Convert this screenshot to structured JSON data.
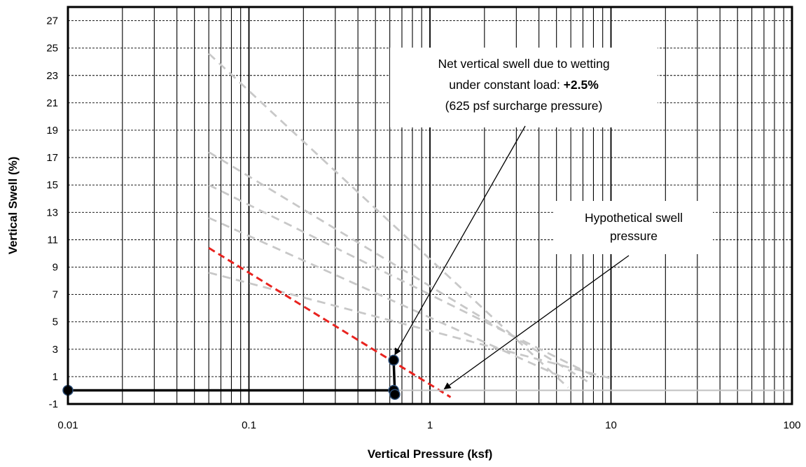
{
  "chart_data": {
    "type": "scatter",
    "xlabel": "Vertical Pressure (ksf)",
    "ylabel": "Vertical Swell (%)",
    "x_scale": "log",
    "xlim": [
      0.01,
      100
    ],
    "ylim": [
      -1,
      28
    ],
    "x_ticks": [
      "0.01",
      "0.1",
      "1",
      "10",
      "100"
    ],
    "y_ticks": [
      "-1",
      "1",
      "3",
      "5",
      "7",
      "9",
      "11",
      "13",
      "15",
      "17",
      "19",
      "21",
      "23",
      "25",
      "27"
    ],
    "grid": true,
    "legend": "none",
    "series": [
      {
        "style": "light-gray-dashed",
        "points": [
          [
            0.06,
            24.6
          ],
          [
            5.8,
            0.2
          ]
        ]
      },
      {
        "style": "light-gray-dashed",
        "points": [
          [
            0.06,
            17.4
          ],
          [
            7.5,
            0.6
          ]
        ]
      },
      {
        "style": "light-gray-dashed",
        "points": [
          [
            0.06,
            15.0
          ],
          [
            8.5,
            0.9
          ]
        ]
      },
      {
        "style": "light-gray-dashed",
        "points": [
          [
            0.06,
            12.6
          ],
          [
            5.5,
            0.9
          ]
        ]
      },
      {
        "style": "light-gray-dashed",
        "points": [
          [
            0.06,
            8.6
          ],
          [
            9.8,
            0.9
          ]
        ]
      },
      {
        "style": "red-dashed",
        "points": [
          [
            0.06,
            10.4
          ],
          [
            1.3,
            -0.5
          ]
        ]
      },
      {
        "style": "light-gray-solid",
        "points": [
          [
            0.65,
            0.0
          ],
          [
            100,
            0.0
          ]
        ]
      },
      {
        "style": "black-solid-markers",
        "points": [
          [
            0.01,
            0.0
          ],
          [
            0.63,
            0.0
          ],
          [
            0.64,
            -0.3
          ],
          [
            0.63,
            2.2
          ]
        ]
      }
    ],
    "annotations": [
      {
        "lines": [
          {
            "text": "Net vertical swell due to wetting"
          },
          {
            "text": "under constant load: ",
            "bold": "+2.5%"
          },
          {
            "text": "(625 psf surcharge pressure)"
          }
        ],
        "arrow_target": [
          0.64,
          2.6
        ]
      },
      {
        "lines": [
          {
            "text": "Hypothetical swell"
          },
          {
            "text": "pressure"
          }
        ],
        "arrow_target": [
          1.2,
          0.1
        ]
      }
    ],
    "colors": {
      "grid": "#000000",
      "gray_dash": "#c8c8c8",
      "red_dash": "#e8231f",
      "black_line": "#000000",
      "marker_fill": "#000000",
      "marker_edge": "#2a4d78",
      "baseline": "#c0c0c0"
    }
  }
}
